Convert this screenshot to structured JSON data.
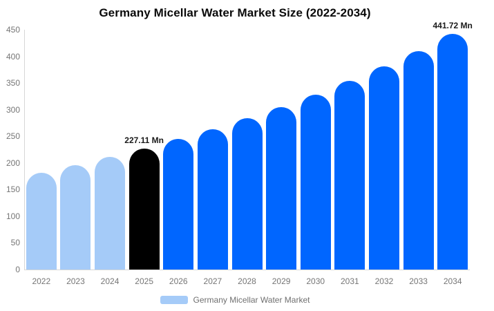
{
  "chart_data": {
    "type": "bar",
    "title": "Germany Micellar Water Market Size (2022-2034)",
    "categories": [
      "2022",
      "2023",
      "2024",
      "2025",
      "2026",
      "2027",
      "2028",
      "2029",
      "2030",
      "2031",
      "2032",
      "2033",
      "2034"
    ],
    "values": [
      181.9,
      195.8,
      210.9,
      227.11,
      244.5,
      263.3,
      283.5,
      305.2,
      328.6,
      353.8,
      381.0,
      410.2,
      441.72
    ],
    "bar_colors": [
      "#A5CBF8",
      "#A5CBF8",
      "#A5CBF8",
      "#000000",
      "#0066FF",
      "#0066FF",
      "#0066FF",
      "#0066FF",
      "#0066FF",
      "#0066FF",
      "#0066FF",
      "#0066FF",
      "#0066FF"
    ],
    "annotations": [
      {
        "index": 3,
        "text": "227.11 Mn"
      },
      {
        "index": 12,
        "text": "441.72 Mn"
      }
    ],
    "ylim": [
      0,
      450
    ],
    "yticks": [
      0,
      50,
      100,
      150,
      200,
      250,
      300,
      350,
      400,
      450
    ],
    "grid": false,
    "xlabel": "",
    "ylabel": "",
    "legend": {
      "position": "bottom",
      "items": [
        {
          "label": "Germany Micellar Water Market",
          "color": "#A5CBF8"
        }
      ]
    },
    "palette": {
      "historical": "#A5CBF8",
      "base_year": "#000000",
      "forecast": "#0066FF"
    }
  }
}
